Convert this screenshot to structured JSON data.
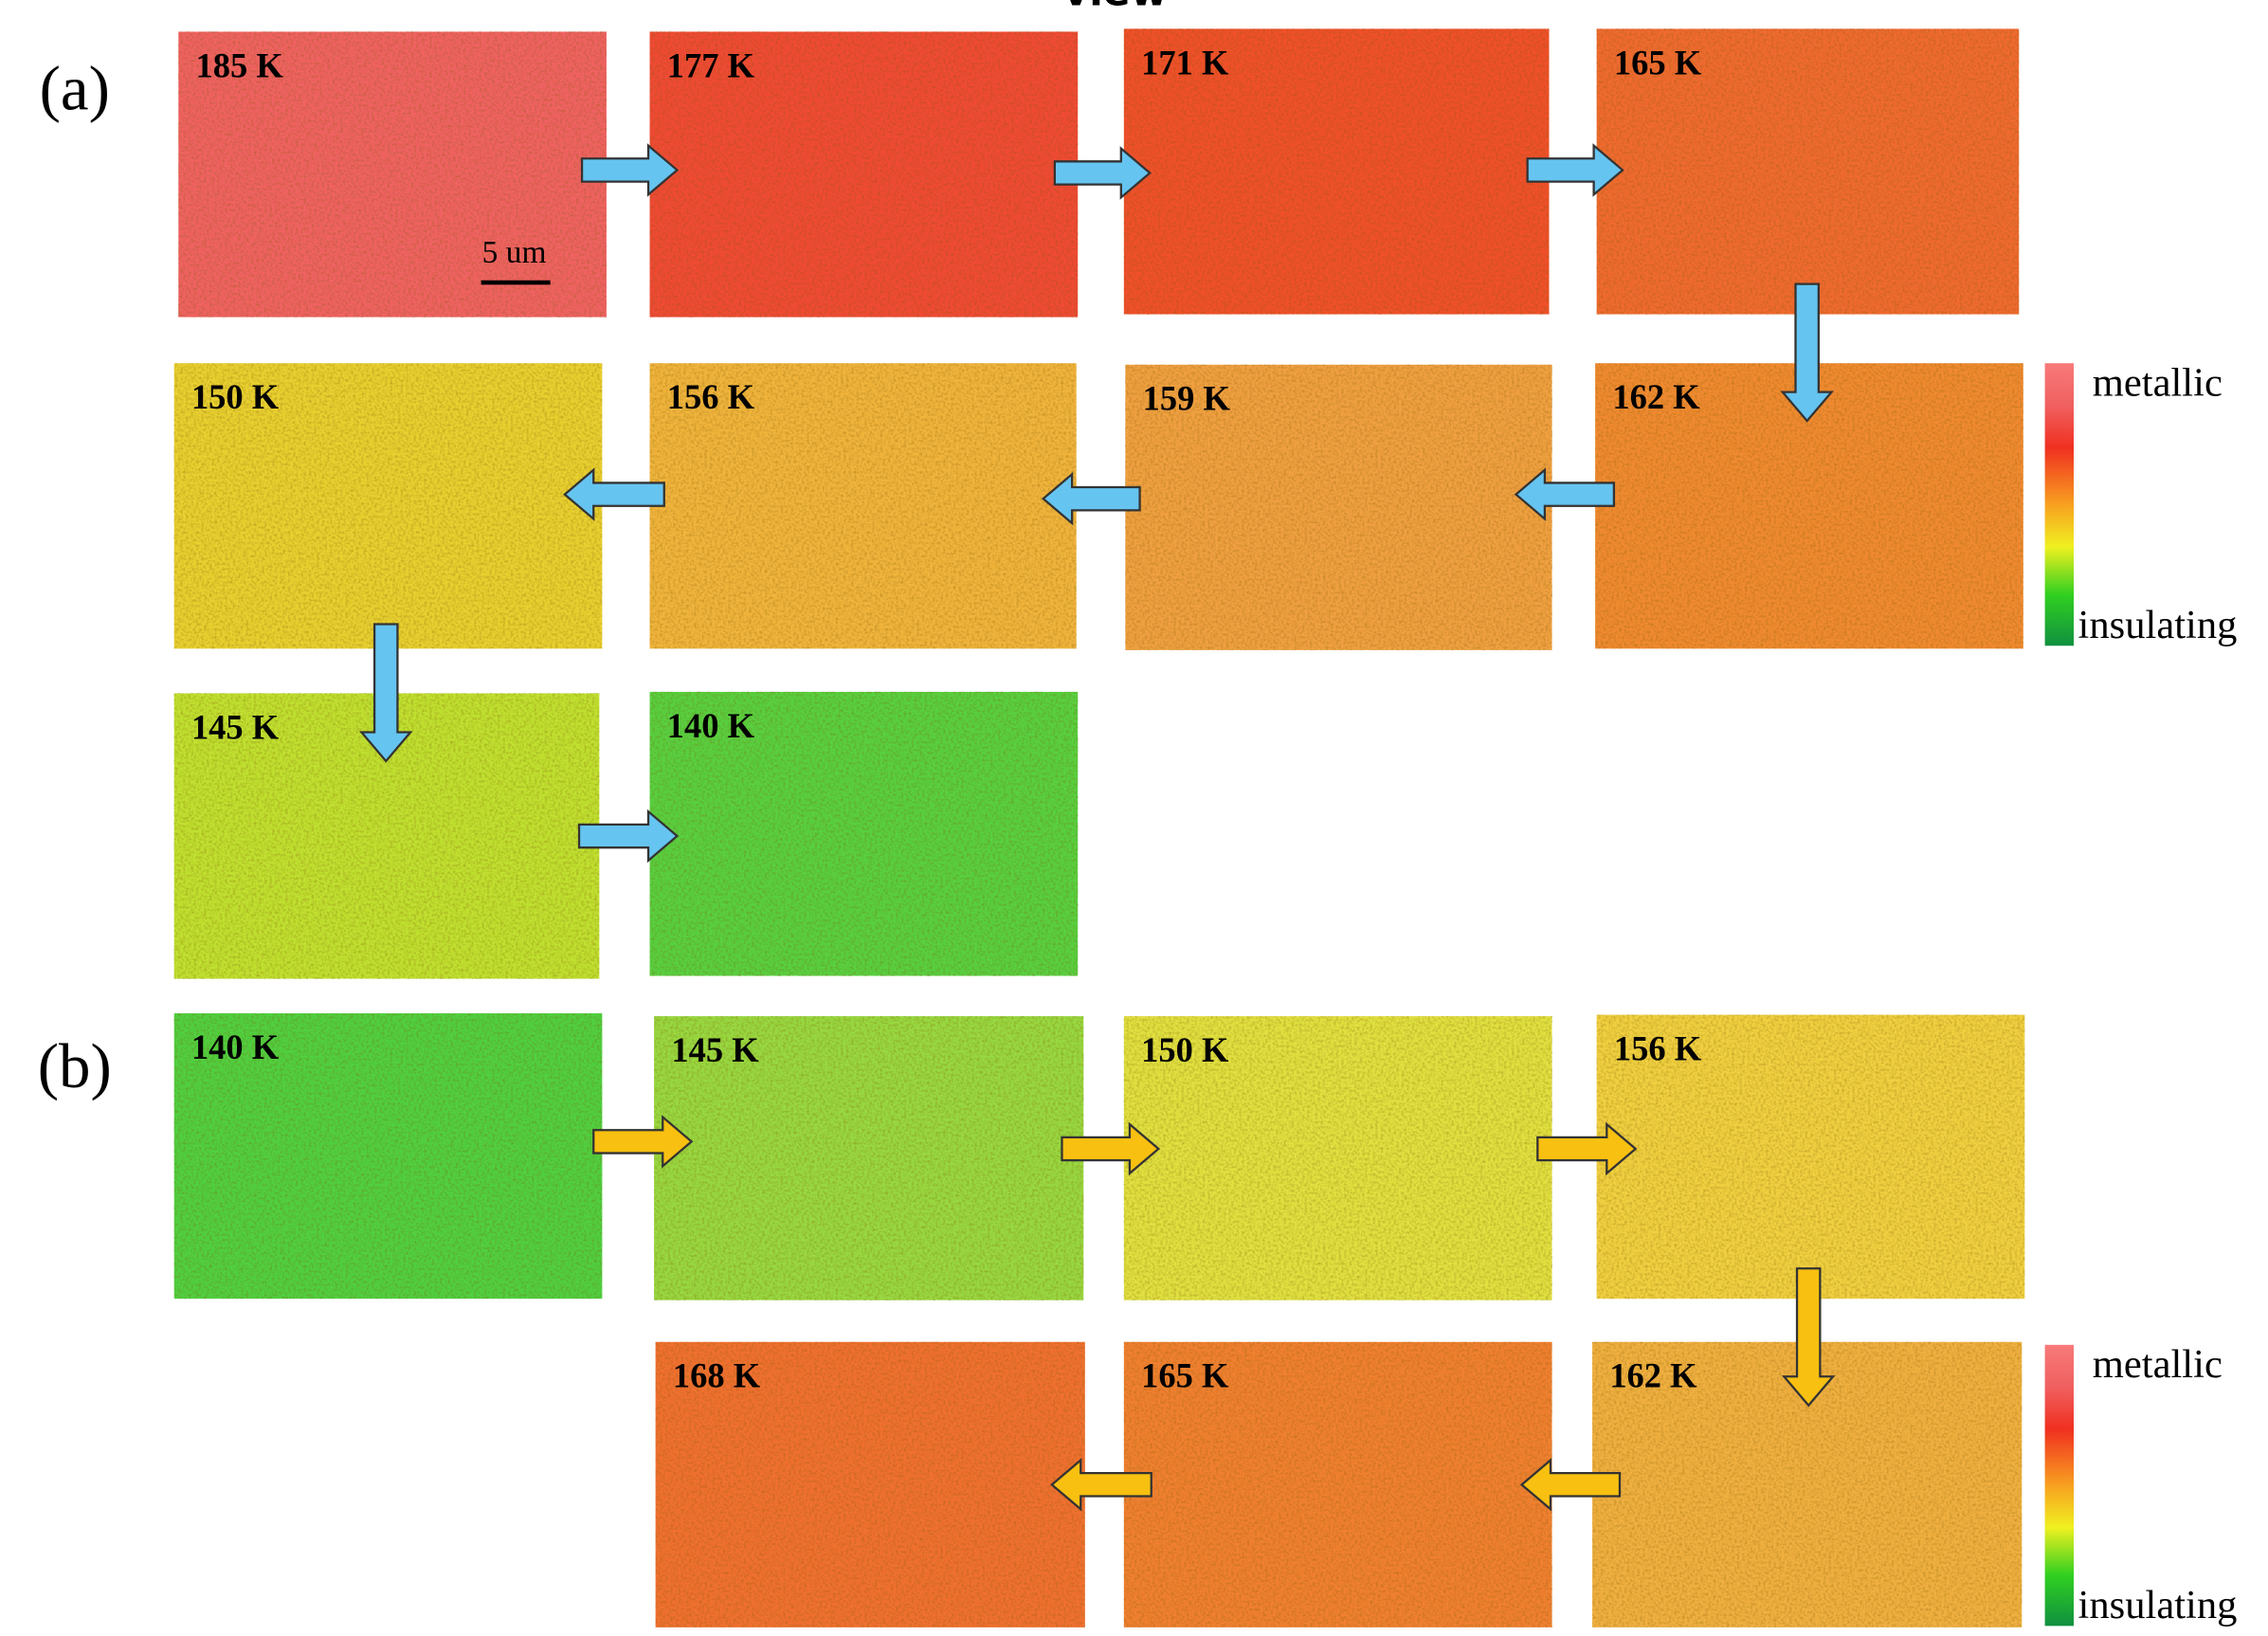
{
  "top_text": "view",
  "panels": [
    {
      "label": "(a)",
      "scale_bar": "5 um",
      "colorbar": {
        "top": "metallic",
        "bottom": "insulating"
      },
      "images": [
        "185 K",
        "177 K",
        "171 K",
        "165 K",
        "162 K",
        "159 K",
        "156 K",
        "150 K",
        "145 K",
        "140 K"
      ]
    },
    {
      "label": "(b)",
      "colorbar": {
        "top": "metallic",
        "bottom": "insulating"
      },
      "images": [
        "140 K",
        "145 K",
        "150 K",
        "156 K",
        "162 K",
        "165 K",
        "168 K"
      ]
    }
  ]
}
